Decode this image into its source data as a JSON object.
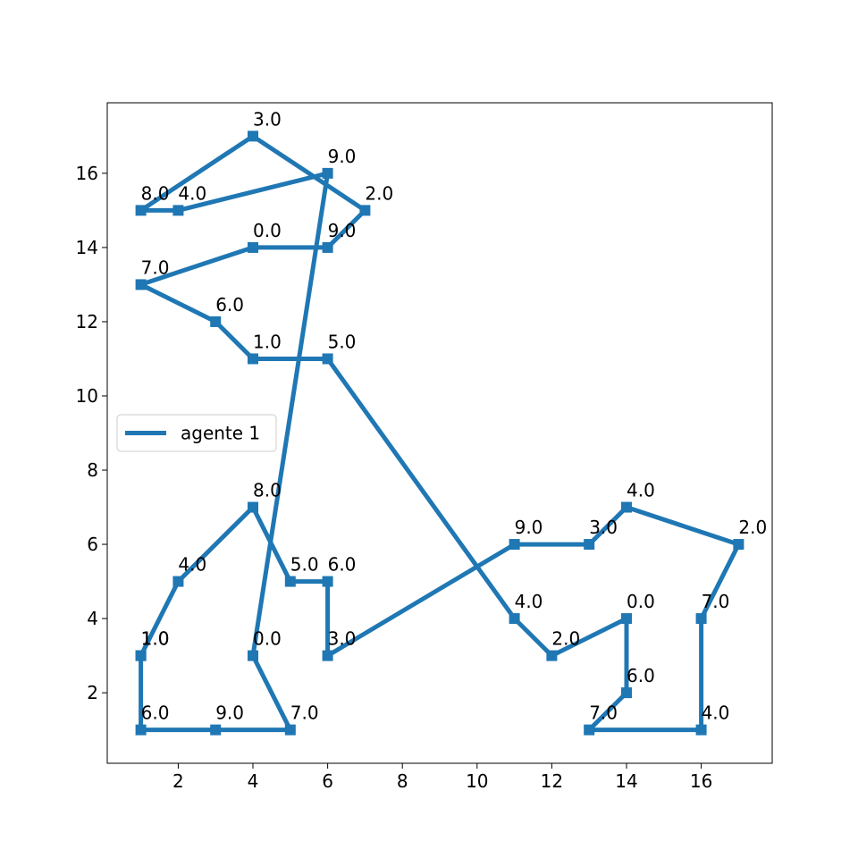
{
  "chart_data": {
    "type": "line",
    "title": "",
    "xlabel": "",
    "ylabel": "",
    "xlim": [
      0.1,
      17.9
    ],
    "ylim": [
      0.1,
      17.9
    ],
    "xticks": [
      2,
      4,
      6,
      8,
      10,
      12,
      14,
      16
    ],
    "yticks": [
      2,
      4,
      6,
      8,
      10,
      12,
      14,
      16
    ],
    "grid": false,
    "legend_position": "center-left",
    "color": "#1f77b4",
    "marker": "square",
    "series": [
      {
        "name": "agente 1",
        "points": [
          {
            "x": 1,
            "y": 3,
            "label": "1.0"
          },
          {
            "x": 1,
            "y": 1,
            "label": "6.0"
          },
          {
            "x": 3,
            "y": 1,
            "label": "9.0"
          },
          {
            "x": 5,
            "y": 1,
            "label": "7.0"
          },
          {
            "x": 4,
            "y": 3,
            "label": "0.0"
          },
          {
            "x": 6,
            "y": 16,
            "label": "9.0"
          },
          {
            "x": 2,
            "y": 15,
            "label": "4.0"
          },
          {
            "x": 1,
            "y": 15,
            "label": "8.0"
          },
          {
            "x": 4,
            "y": 17,
            "label": "3.0"
          },
          {
            "x": 7,
            "y": 15,
            "label": "2.0"
          },
          {
            "x": 6,
            "y": 14,
            "label": "9.0"
          },
          {
            "x": 4,
            "y": 14,
            "label": "0.0"
          },
          {
            "x": 1,
            "y": 13,
            "label": "7.0"
          },
          {
            "x": 3,
            "y": 12,
            "label": "6.0"
          },
          {
            "x": 4,
            "y": 11,
            "label": "1.0"
          },
          {
            "x": 6,
            "y": 11,
            "label": "5.0"
          },
          {
            "x": 11,
            "y": 4,
            "label": "4.0"
          },
          {
            "x": 12,
            "y": 3,
            "label": "2.0"
          },
          {
            "x": 14,
            "y": 4,
            "label": "0.0"
          },
          {
            "x": 14,
            "y": 2,
            "label": "6.0"
          },
          {
            "x": 13,
            "y": 1,
            "label": "7.0"
          },
          {
            "x": 16,
            "y": 1,
            "label": "4.0"
          },
          {
            "x": 16,
            "y": 4,
            "label": "7.0"
          },
          {
            "x": 17,
            "y": 6,
            "label": "2.0"
          },
          {
            "x": 14,
            "y": 7,
            "label": "4.0"
          },
          {
            "x": 13,
            "y": 6,
            "label": "3.0"
          },
          {
            "x": 11,
            "y": 6,
            "label": "9.0"
          },
          {
            "x": 6,
            "y": 3,
            "label": "3.0"
          },
          {
            "x": 6,
            "y": 5,
            "label": "6.0"
          },
          {
            "x": 5,
            "y": 5,
            "label": "5.0"
          },
          {
            "x": 4,
            "y": 7,
            "label": "8.0"
          },
          {
            "x": 2,
            "y": 5,
            "label": "4.0"
          },
          {
            "x": 1,
            "y": 3,
            "label": "1.0"
          }
        ]
      }
    ]
  }
}
